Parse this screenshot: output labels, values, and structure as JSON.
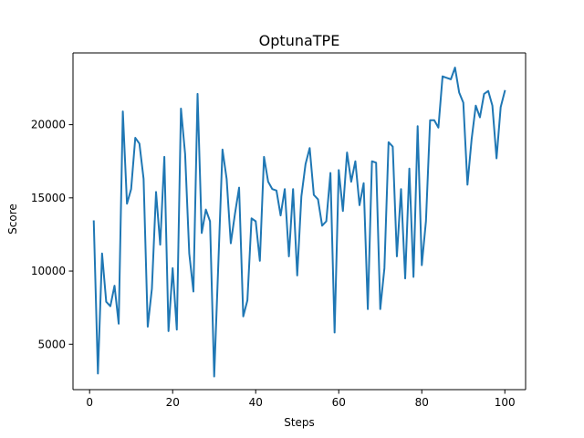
{
  "chart_data": {
    "type": "line",
    "title": "OptunaTPE",
    "xlabel": "Steps",
    "ylabel": "Score",
    "xlim": [
      -4,
      105
    ],
    "ylim": [
      1900,
      24900
    ],
    "grid": false,
    "legend": "none",
    "xticks": [
      0,
      20,
      40,
      60,
      80,
      100
    ],
    "yticks": [
      5000,
      10000,
      15000,
      20000
    ],
    "colors": {
      "line": "#1f77b4",
      "axis": "#000000",
      "background": "#ffffff"
    },
    "series": [
      {
        "name": "Score",
        "x": [
          1,
          2,
          3,
          4,
          5,
          6,
          7,
          8,
          9,
          10,
          11,
          12,
          13,
          14,
          15,
          16,
          17,
          18,
          19,
          20,
          21,
          22,
          23,
          24,
          25,
          26,
          27,
          28,
          29,
          30,
          31,
          32,
          33,
          34,
          35,
          36,
          37,
          38,
          39,
          40,
          41,
          42,
          43,
          44,
          45,
          46,
          47,
          48,
          49,
          50,
          51,
          52,
          53,
          54,
          55,
          56,
          57,
          58,
          59,
          60,
          61,
          62,
          63,
          64,
          65,
          66,
          67,
          68,
          69,
          70,
          71,
          72,
          73,
          74,
          75,
          76,
          77,
          78,
          79,
          80,
          81,
          82,
          83,
          84,
          85,
          86,
          87,
          88,
          89,
          90,
          91,
          92,
          93,
          94,
          95,
          96,
          97,
          98,
          99,
          100
        ],
        "values": [
          13400,
          3000,
          11200,
          7900,
          7600,
          9000,
          6400,
          20900,
          14600,
          15600,
          19100,
          18700,
          16300,
          6200,
          8800,
          15400,
          11800,
          17800,
          5900,
          10200,
          6000,
          21100,
          18000,
          11200,
          8600,
          22100,
          12600,
          14200,
          13400,
          2800,
          10500,
          18300,
          16300,
          11900,
          13900,
          15700,
          6900,
          8000,
          13600,
          13400,
          10700,
          17800,
          16100,
          15600,
          15500,
          13800,
          15600,
          11000,
          15600,
          9700,
          15100,
          17300,
          18400,
          15200,
          14900,
          13100,
          13400,
          16700,
          5800,
          16900,
          14100,
          18100,
          16100,
          17500,
          14500,
          16000,
          7400,
          17500,
          17400,
          7400,
          10200,
          18800,
          18500,
          11000,
          15600,
          9500,
          17000,
          9600,
          19900,
          10400,
          13400,
          20300,
          20300,
          19800,
          23300,
          23200,
          23100,
          23900,
          22200,
          21500,
          15900,
          19000,
          21300,
          20500,
          22100,
          22300,
          21300,
          17700,
          21200,
          22300
        ]
      }
    ]
  }
}
